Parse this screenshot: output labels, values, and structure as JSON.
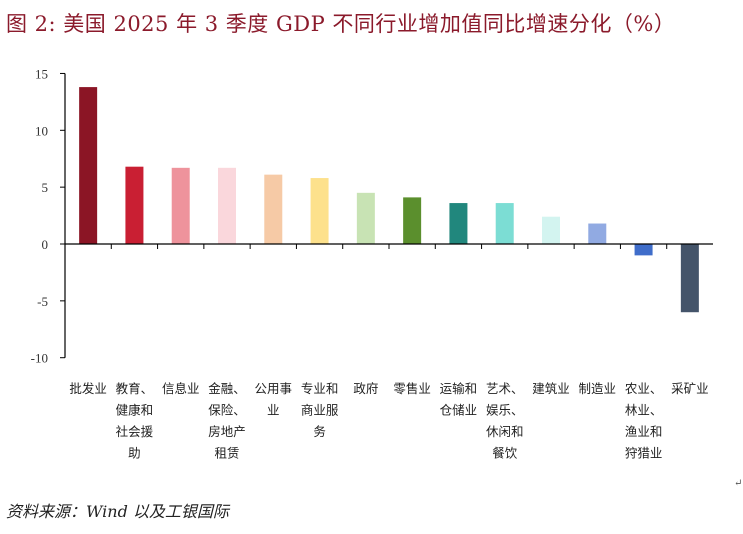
{
  "title": "图 2:  美国 2025 年 3 季度 GDP 不同行业增加值同比增速分化（%）",
  "source": "资料来源：Wind 以及工银国际",
  "corner_mark": "↵",
  "chart_data": {
    "type": "bar",
    "title": "图 2:  美国 2025 年 3 季度 GDP 不同行业增加值同比增速分化（%）",
    "xlabel": "",
    "ylabel": "",
    "ylim": [
      -10,
      15
    ],
    "yticks": [
      15,
      10,
      5,
      0,
      -5,
      -10
    ],
    "grid": false,
    "categories": [
      [
        "批发业"
      ],
      [
        "教育、",
        "健康和",
        "社会援",
        "助"
      ],
      [
        "信息业"
      ],
      [
        "金融、",
        "保险、",
        "房地产",
        "租赁"
      ],
      [
        "公用事",
        "业"
      ],
      [
        "专业和",
        "商业服",
        "务"
      ],
      [
        "政府"
      ],
      [
        "零售业"
      ],
      [
        "运输和",
        "仓储业"
      ],
      [
        "艺术、",
        "娱乐、",
        "休闲和",
        "餐饮"
      ],
      [
        "建筑业"
      ],
      [
        "制造业"
      ],
      [
        "农业、",
        "林业、",
        "渔业和",
        "狩猎业"
      ],
      [
        "采矿业"
      ]
    ],
    "values": [
      13.8,
      6.8,
      6.7,
      6.7,
      6.1,
      5.8,
      4.5,
      4.1,
      3.6,
      3.6,
      2.4,
      1.8,
      -1.0,
      -6.0
    ],
    "colors": [
      "#8b1525",
      "#c91f33",
      "#ee939c",
      "#fad7dc",
      "#f6caa6",
      "#fde18c",
      "#c8e3b4",
      "#5b8f2d",
      "#21877d",
      "#7cddd4",
      "#d3f4f0",
      "#91aae2",
      "#3f6dca",
      "#44546a"
    ]
  }
}
